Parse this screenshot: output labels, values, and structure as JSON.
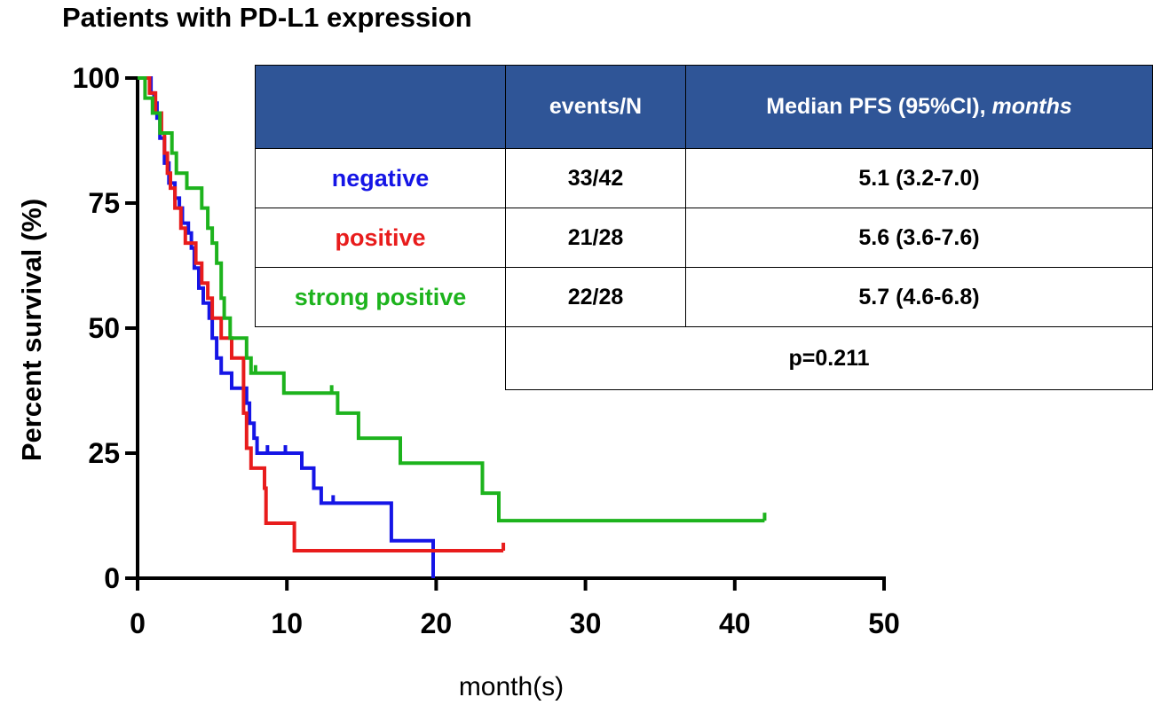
{
  "chart_data": {
    "type": "line",
    "title": "Patients with PD-L1 expression",
    "xlabel": "month(s)",
    "ylabel": "Percent survival (%)",
    "xlim": [
      0,
      50
    ],
    "ylim": [
      0,
      100
    ],
    "xticks": [
      0,
      10,
      20,
      30,
      40,
      50
    ],
    "yticks": [
      0,
      25,
      50,
      75,
      100
    ],
    "grid": false,
    "series": [
      {
        "name": "negative",
        "color": "#1515e6",
        "points": [
          [
            0,
            100
          ],
          [
            0.9,
            100
          ],
          [
            0.9,
            97
          ],
          [
            1.1,
            97
          ],
          [
            1.1,
            95
          ],
          [
            1.3,
            95
          ],
          [
            1.3,
            92
          ],
          [
            1.5,
            92
          ],
          [
            1.5,
            88
          ],
          [
            1.8,
            88
          ],
          [
            1.8,
            83
          ],
          [
            2.1,
            83
          ],
          [
            2.1,
            79
          ],
          [
            2.5,
            79
          ],
          [
            2.5,
            76
          ],
          [
            2.8,
            76
          ],
          [
            2.8,
            74
          ],
          [
            3.0,
            74
          ],
          [
            3.0,
            71
          ],
          [
            3.4,
            71
          ],
          [
            3.4,
            69
          ],
          [
            3.6,
            69
          ],
          [
            3.6,
            66
          ],
          [
            3.8,
            66
          ],
          [
            3.8,
            62
          ],
          [
            4.1,
            62
          ],
          [
            4.1,
            58
          ],
          [
            4.4,
            58
          ],
          [
            4.4,
            55
          ],
          [
            4.8,
            55
          ],
          [
            4.8,
            52
          ],
          [
            5.0,
            52
          ],
          [
            5.0,
            48
          ],
          [
            5.3,
            48
          ],
          [
            5.3,
            44
          ],
          [
            5.6,
            44
          ],
          [
            5.6,
            41
          ],
          [
            6.3,
            41
          ],
          [
            6.3,
            38
          ],
          [
            7.3,
            38
          ],
          [
            7.3,
            35
          ],
          [
            7.5,
            35
          ],
          [
            7.5,
            31
          ],
          [
            7.8,
            31
          ],
          [
            7.8,
            28
          ],
          [
            8.0,
            28
          ],
          [
            8.0,
            25
          ],
          [
            11.0,
            25
          ],
          [
            11.0,
            22
          ],
          [
            11.8,
            22
          ],
          [
            11.8,
            18
          ],
          [
            12.3,
            18
          ],
          [
            12.3,
            15
          ],
          [
            17.0,
            15
          ],
          [
            17.0,
            7.5
          ],
          [
            19.8,
            7.5
          ],
          [
            19.8,
            0
          ]
        ],
        "censor_x": [
          8.7,
          9.9,
          13.1
        ]
      },
      {
        "name": "positive",
        "color": "#e81c1c",
        "points": [
          [
            0,
            100
          ],
          [
            0.8,
            100
          ],
          [
            0.8,
            97
          ],
          [
            1.2,
            97
          ],
          [
            1.2,
            93
          ],
          [
            1.6,
            93
          ],
          [
            1.6,
            89
          ],
          [
            1.8,
            89
          ],
          [
            1.8,
            85
          ],
          [
            2.0,
            85
          ],
          [
            2.0,
            81
          ],
          [
            2.2,
            81
          ],
          [
            2.2,
            78
          ],
          [
            2.5,
            78
          ],
          [
            2.5,
            74
          ],
          [
            2.9,
            74
          ],
          [
            2.9,
            70
          ],
          [
            3.2,
            70
          ],
          [
            3.2,
            67
          ],
          [
            3.9,
            67
          ],
          [
            3.9,
            63
          ],
          [
            4.3,
            63
          ],
          [
            4.3,
            59
          ],
          [
            4.7,
            59
          ],
          [
            4.7,
            56
          ],
          [
            5.0,
            56
          ],
          [
            5.0,
            52
          ],
          [
            5.6,
            52
          ],
          [
            5.6,
            48
          ],
          [
            6.3,
            48
          ],
          [
            6.3,
            44
          ],
          [
            7.1,
            44
          ],
          [
            7.1,
            33
          ],
          [
            7.3,
            33
          ],
          [
            7.3,
            26
          ],
          [
            7.6,
            26
          ],
          [
            7.6,
            22
          ],
          [
            8.5,
            22
          ],
          [
            8.5,
            18
          ],
          [
            8.6,
            18
          ],
          [
            8.6,
            11
          ],
          [
            10.5,
            11
          ],
          [
            10.5,
            5.5
          ],
          [
            24.5,
            5.5
          ]
        ],
        "censor_x": [
          24.5
        ]
      },
      {
        "name": "strong positive",
        "color": "#1db31d",
        "points": [
          [
            0,
            100
          ],
          [
            0.5,
            100
          ],
          [
            0.5,
            96
          ],
          [
            1.0,
            96
          ],
          [
            1.0,
            93
          ],
          [
            1.5,
            93
          ],
          [
            1.5,
            89
          ],
          [
            2.3,
            89
          ],
          [
            2.3,
            85
          ],
          [
            2.6,
            85
          ],
          [
            2.6,
            81
          ],
          [
            3.3,
            81
          ],
          [
            3.3,
            78
          ],
          [
            4.3,
            78
          ],
          [
            4.3,
            74
          ],
          [
            4.7,
            74
          ],
          [
            4.7,
            70
          ],
          [
            5.0,
            70
          ],
          [
            5.0,
            67
          ],
          [
            5.3,
            67
          ],
          [
            5.3,
            63
          ],
          [
            5.6,
            63
          ],
          [
            5.6,
            56
          ],
          [
            5.8,
            56
          ],
          [
            5.8,
            52
          ],
          [
            6.2,
            52
          ],
          [
            6.2,
            48
          ],
          [
            7.3,
            48
          ],
          [
            7.3,
            44
          ],
          [
            7.6,
            44
          ],
          [
            7.6,
            41
          ],
          [
            9.8,
            41
          ],
          [
            9.8,
            37
          ],
          [
            13.4,
            37
          ],
          [
            13.4,
            33
          ],
          [
            14.8,
            33
          ],
          [
            14.8,
            28
          ],
          [
            17.6,
            28
          ],
          [
            17.6,
            23
          ],
          [
            23.1,
            23
          ],
          [
            23.1,
            17
          ],
          [
            24.2,
            17
          ],
          [
            24.2,
            11.5
          ],
          [
            42,
            11.5
          ]
        ],
        "censor_x": [
          7.9,
          13.0,
          17.6,
          42
        ]
      }
    ]
  },
  "legend_table": {
    "headers": [
      "",
      "events/N",
      "Median PFS (95%CI), ",
      "months"
    ],
    "rows": [
      {
        "group": "negative",
        "group_color": "#1515e6",
        "events": "33/42",
        "median": "5.1 (3.2-7.0)"
      },
      {
        "group": "positive",
        "group_color": "#e81c1c",
        "events": "21/28",
        "median": "5.6 (3.6-7.6)"
      },
      {
        "group": "strong positive",
        "group_color": "#1db31d",
        "events": "22/28",
        "median": "5.7 (4.6-6.8)"
      }
    ],
    "p_value": "p=0.211",
    "header_bg": "#2f5597"
  }
}
